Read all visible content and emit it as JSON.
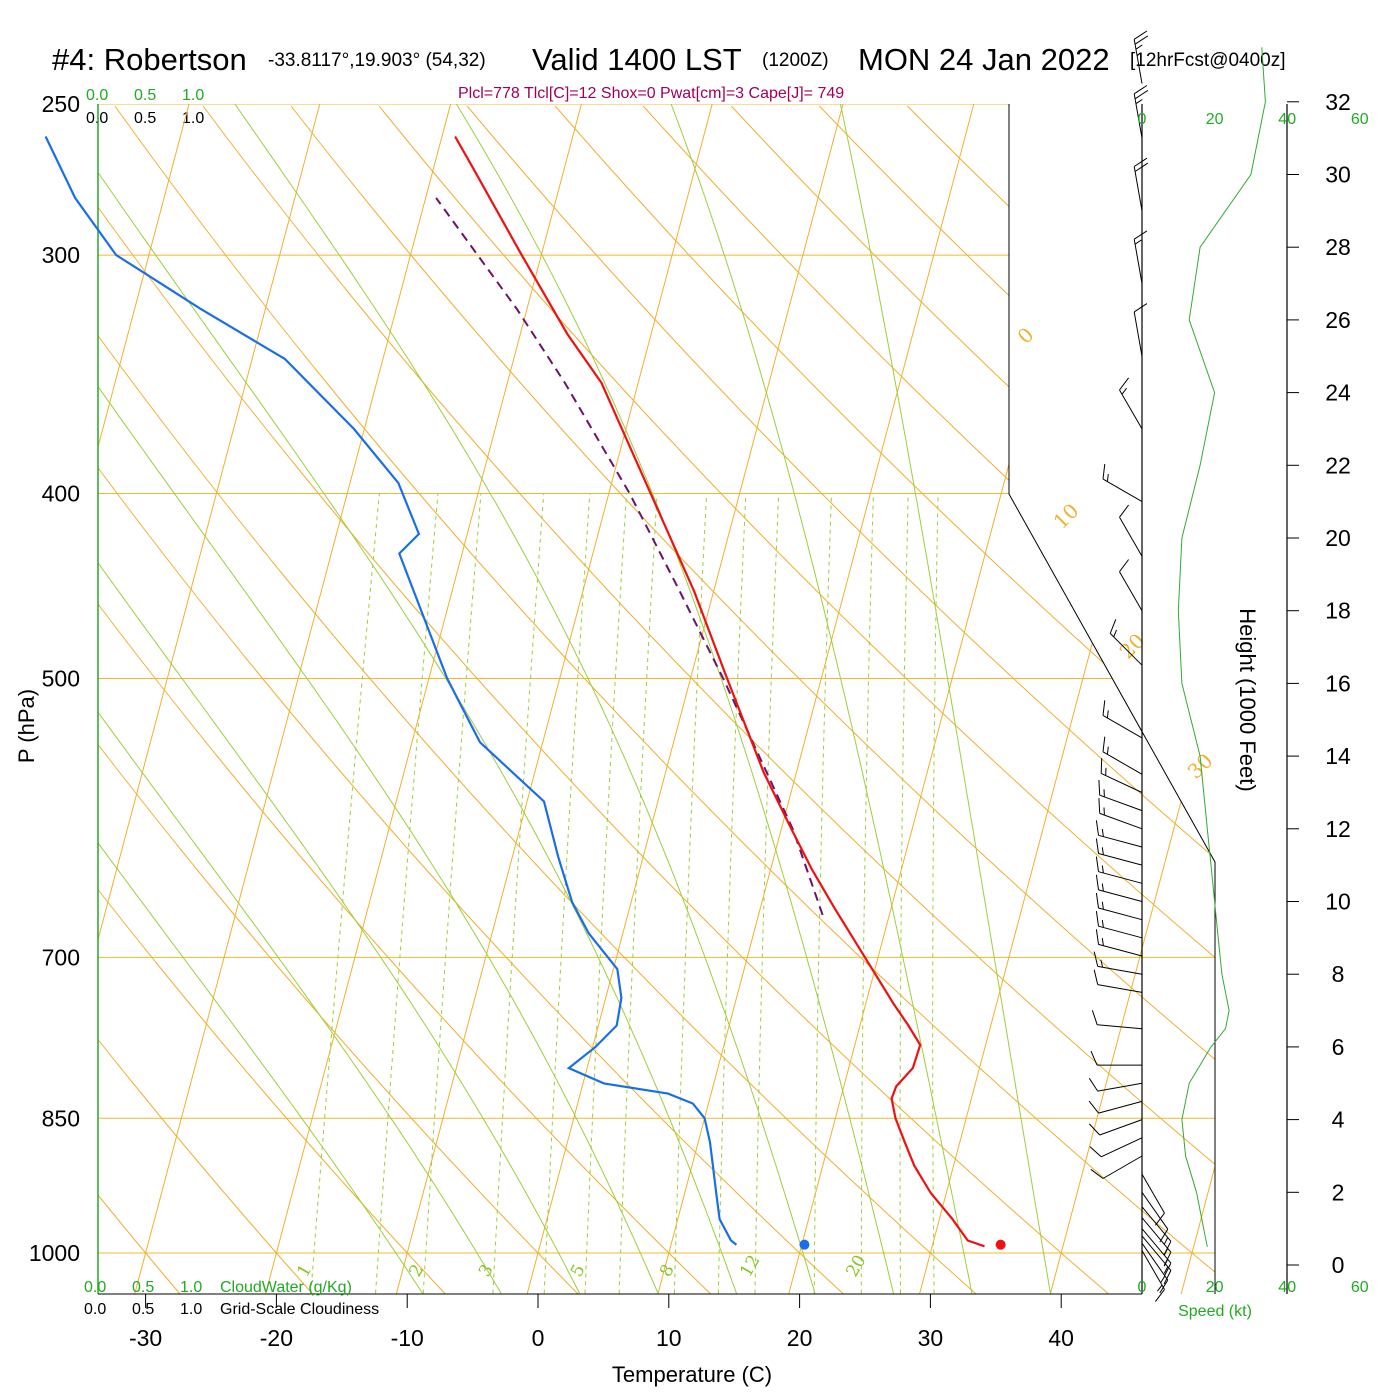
{
  "header": {
    "station": "#4: Robertson",
    "coords": "-33.8117°,19.903° (54,32)",
    "valid": "Valid 1400 LST",
    "utc": "(1200Z)",
    "date": "MON 24 Jan 2022",
    "forecast": "[12hrFcst@0400z]"
  },
  "params_line": "Plcl=778 Tlcl[C]=12 Shox=0 Pwat[cm]=3 Cape[J]= 749",
  "top_scales": {
    "cloudwater_ticks": [
      "0.0",
      "0.5",
      "1.0"
    ],
    "cloudiness_ticks": [
      "0.0",
      "0.5",
      "1.0"
    ]
  },
  "bottom_legend": {
    "cloudwater_ticks": [
      "0.0",
      "0.5",
      "1.0"
    ],
    "cloudwater_label": "CloudWater (g/Kg)",
    "cloudiness_ticks": [
      "0.0",
      "0.5",
      "1.0"
    ],
    "cloudiness_label": "Grid-Scale Cloudiness"
  },
  "colors": {
    "isobar": "#f0b830",
    "isotherm": "#f0b030",
    "dry_adiabat": "#f0b030",
    "moist_adiabat": "#9ccf3c",
    "mixing_ratio": "#9ccf3c",
    "temperature": "#ee1111",
    "dewpoint": "#1a6fe8",
    "parcel": "#70106a",
    "wind_speed": "#33aa33"
  },
  "chart_data": {
    "type": "skew-t",
    "xlabel": "Temperature (C)",
    "ylabel": "P (hPa)",
    "y2label": "Height (1000 Feet)",
    "x_ticks": [
      -30,
      -20,
      -10,
      0,
      10,
      20,
      30,
      40
    ],
    "pressure_ticks": [
      250,
      300,
      400,
      500,
      700,
      850,
      1000
    ],
    "height_ticks": [
      0,
      2,
      4,
      6,
      8,
      10,
      12,
      14,
      16,
      18,
      20,
      22,
      24,
      26,
      28,
      30,
      32
    ],
    "isotherm_labels": [
      {
        "temp": 10,
        "text": "10"
      },
      {
        "temp": 0,
        "text": "0"
      },
      {
        "temp": -10,
        "text": "-10"
      },
      {
        "temp": -20,
        "text": "-20"
      },
      {
        "temp": -30,
        "text": "-30"
      }
    ],
    "dry_adiabat_labels": [
      "0",
      "10",
      "20",
      "30"
    ],
    "mixing_ratio_labels": [
      "1",
      "2",
      "3",
      "5",
      "8",
      "12",
      "20"
    ],
    "temperature_profile": [
      {
        "p": 992,
        "t": 34.0
      },
      {
        "p": 985,
        "t": 32.6
      },
      {
        "p": 960,
        "t": 31.0
      },
      {
        "p": 930,
        "t": 28.8
      },
      {
        "p": 900,
        "t": 27.0
      },
      {
        "p": 875,
        "t": 25.8
      },
      {
        "p": 850,
        "t": 24.6
      },
      {
        "p": 830,
        "t": 23.9
      },
      {
        "p": 818,
        "t": 24.0
      },
      {
        "p": 800,
        "t": 24.9
      },
      {
        "p": 778,
        "t": 25.0
      },
      {
        "p": 760,
        "t": 23.7
      },
      {
        "p": 740,
        "t": 22.1
      },
      {
        "p": 700,
        "t": 19.0
      },
      {
        "p": 660,
        "t": 15.7
      },
      {
        "p": 630,
        "t": 13.2
      },
      {
        "p": 600,
        "t": 10.8
      },
      {
        "p": 560,
        "t": 7.5
      },
      {
        "p": 500,
        "t": 2.8
      },
      {
        "p": 450,
        "t": -1.5
      },
      {
        "p": 400,
        "t": -6.8
      },
      {
        "p": 350,
        "t": -12.8
      },
      {
        "p": 330,
        "t": -16.4
      },
      {
        "p": 300,
        "t": -21.5
      },
      {
        "p": 270,
        "t": -27.0
      },
      {
        "p": 260,
        "t": -29.0
      }
    ],
    "dewpoint_profile": [
      {
        "p": 990,
        "td": 15.0
      },
      {
        "p": 985,
        "td": 14.5
      },
      {
        "p": 960,
        "td": 13.2
      },
      {
        "p": 930,
        "td": 12.4
      },
      {
        "p": 900,
        "td": 11.6
      },
      {
        "p": 875,
        "td": 10.9
      },
      {
        "p": 850,
        "td": 10.0
      },
      {
        "p": 835,
        "td": 8.8
      },
      {
        "p": 825,
        "td": 6.7
      },
      {
        "p": 815,
        "td": 1.6
      },
      {
        "p": 800,
        "td": -1.4
      },
      {
        "p": 780,
        "td": 0.2
      },
      {
        "p": 760,
        "td": 1.4
      },
      {
        "p": 735,
        "td": 1.2
      },
      {
        "p": 710,
        "td": 0.3
      },
      {
        "p": 680,
        "td": -2.6
      },
      {
        "p": 655,
        "td": -4.5
      },
      {
        "p": 620,
        "td": -6.5
      },
      {
        "p": 580,
        "td": -8.7
      },
      {
        "p": 540,
        "td": -14.8
      },
      {
        "p": 500,
        "td": -18.6
      },
      {
        "p": 430,
        "td": -24.8
      },
      {
        "p": 420,
        "td": -23.7
      },
      {
        "p": 395,
        "td": -26.3
      },
      {
        "p": 370,
        "td": -30.8
      },
      {
        "p": 340,
        "td": -37.5
      },
      {
        "p": 320,
        "td": -45.0
      },
      {
        "p": 300,
        "td": -52.5
      },
      {
        "p": 280,
        "td": -56.8
      },
      {
        "p": 260,
        "td": -60.3
      }
    ],
    "parcel_profile": [
      {
        "p": 665,
        "t": 14.9
      },
      {
        "p": 600,
        "t": 10.9
      },
      {
        "p": 550,
        "t": 6.9
      },
      {
        "p": 500,
        "t": 2.5
      },
      {
        "p": 450,
        "t": -2.6
      },
      {
        "p": 400,
        "t": -8.4
      },
      {
        "p": 350,
        "t": -15.6
      },
      {
        "p": 320,
        "t": -20.8
      },
      {
        "p": 290,
        "t": -27.0
      },
      {
        "p": 280,
        "t": -29.2
      }
    ],
    "surface_markers": [
      {
        "kind": "temperature",
        "p": 990,
        "t": 35.2
      },
      {
        "kind": "dewpoint",
        "p": 990,
        "t": 20.2
      }
    ],
    "wind_scale_ticks": [
      "0",
      "20",
      "40",
      "60"
    ],
    "wind_scale_label": "Speed (kt)",
    "wind_speed_profile": [
      {
        "h": 0.5,
        "kt": 18
      },
      {
        "h": 1.0,
        "kt": 17
      },
      {
        "h": 2.0,
        "kt": 15
      },
      {
        "h": 3.0,
        "kt": 12
      },
      {
        "h": 4.0,
        "kt": 11
      },
      {
        "h": 5.0,
        "kt": 13
      },
      {
        "h": 6.0,
        "kt": 19
      },
      {
        "h": 6.5,
        "kt": 23
      },
      {
        "h": 7.0,
        "kt": 24
      },
      {
        "h": 8.0,
        "kt": 22
      },
      {
        "h": 9.0,
        "kt": 21
      },
      {
        "h": 10.0,
        "kt": 20
      },
      {
        "h": 11.0,
        "kt": 19
      },
      {
        "h": 12.0,
        "kt": 18
      },
      {
        "h": 14.0,
        "kt": 16
      },
      {
        "h": 16.0,
        "kt": 11
      },
      {
        "h": 18.0,
        "kt": 10
      },
      {
        "h": 20.0,
        "kt": 11
      },
      {
        "h": 22.0,
        "kt": 16
      },
      {
        "h": 24.0,
        "kt": 20
      },
      {
        "h": 26.0,
        "kt": 13
      },
      {
        "h": 28.0,
        "kt": 16
      },
      {
        "h": 30.0,
        "kt": 30
      },
      {
        "h": 32.0,
        "kt": 34
      },
      {
        "h": 33.5,
        "kt": 33
      }
    ],
    "wind_barbs": [
      {
        "h": 0.4,
        "dir": 150,
        "kt": 15
      },
      {
        "h": 0.6,
        "dir": 145,
        "kt": 15
      },
      {
        "h": 0.8,
        "dir": 140,
        "kt": 15
      },
      {
        "h": 1.0,
        "dir": 140,
        "kt": 15
      },
      {
        "h": 1.3,
        "dir": 140,
        "kt": 15
      },
      {
        "h": 1.6,
        "dir": 140,
        "kt": 15
      },
      {
        "h": 2.0,
        "dir": 145,
        "kt": 12
      },
      {
        "h": 2.5,
        "dir": 150,
        "kt": 10
      },
      {
        "h": 3.0,
        "dir": 240,
        "kt": 10
      },
      {
        "h": 3.5,
        "dir": 245,
        "kt": 10
      },
      {
        "h": 4.0,
        "dir": 250,
        "kt": 10
      },
      {
        "h": 4.5,
        "dir": 255,
        "kt": 10
      },
      {
        "h": 5.0,
        "dir": 260,
        "kt": 10
      },
      {
        "h": 5.5,
        "dir": 270,
        "kt": 10
      },
      {
        "h": 6.5,
        "dir": 275,
        "kt": 10
      },
      {
        "h": 7.5,
        "dir": 280,
        "kt": 10
      },
      {
        "h": 8.0,
        "dir": 280,
        "kt": 15
      },
      {
        "h": 8.5,
        "dir": 285,
        "kt": 15
      },
      {
        "h": 9.0,
        "dir": 285,
        "kt": 15
      },
      {
        "h": 9.5,
        "dir": 285,
        "kt": 15
      },
      {
        "h": 10.0,
        "dir": 285,
        "kt": 15
      },
      {
        "h": 10.5,
        "dir": 285,
        "kt": 15
      },
      {
        "h": 11.0,
        "dir": 285,
        "kt": 15
      },
      {
        "h": 11.5,
        "dir": 285,
        "kt": 15
      },
      {
        "h": 12.0,
        "dir": 290,
        "kt": 15
      },
      {
        "h": 12.5,
        "dir": 290,
        "kt": 15
      },
      {
        "h": 13.0,
        "dir": 295,
        "kt": 15
      },
      {
        "h": 13.5,
        "dir": 300,
        "kt": 15
      },
      {
        "h": 14.5,
        "dir": 300,
        "kt": 15
      },
      {
        "h": 16.5,
        "dir": 315,
        "kt": 15
      },
      {
        "h": 18.0,
        "dir": 330,
        "kt": 10
      },
      {
        "h": 19.5,
        "dir": 330,
        "kt": 10
      },
      {
        "h": 21.0,
        "dir": 300,
        "kt": 15
      },
      {
        "h": 23.0,
        "dir": 330,
        "kt": 15
      },
      {
        "h": 25.0,
        "dir": 350,
        "kt": 10
      },
      {
        "h": 27.0,
        "dir": 350,
        "kt": 15
      },
      {
        "h": 29.0,
        "dir": 350,
        "kt": 20
      },
      {
        "h": 31.0,
        "dir": 350,
        "kt": 25
      },
      {
        "h": 32.5,
        "dir": 350,
        "kt": 25
      }
    ]
  }
}
